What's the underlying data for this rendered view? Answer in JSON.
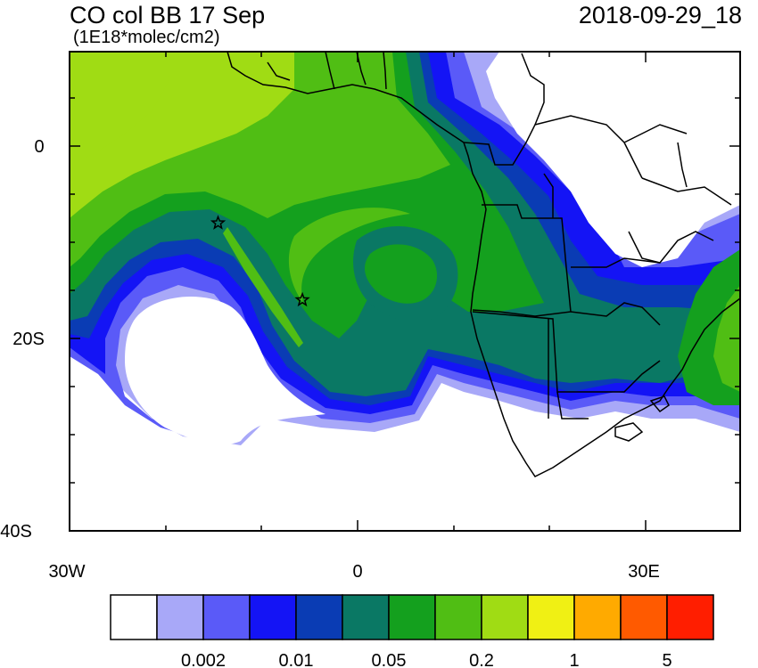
{
  "header": {
    "title": "CO col BB 17 Sep",
    "units": "(1E18*molec/cm2)",
    "datetime": "2018-09-29_18"
  },
  "axes": {
    "lat_labels": [
      "0",
      "20S",
      "40S"
    ],
    "lon_labels": [
      "30W",
      "0",
      "30E"
    ]
  },
  "colorbar": {
    "colors": [
      "#ffffff",
      "#a8a8f8",
      "#5a5af8",
      "#1414f5",
      "#0a3cb4",
      "#0a7864",
      "#14a01e",
      "#50be14",
      "#a0dc14",
      "#f0f014",
      "#ffaa00",
      "#ff5a00",
      "#ff1e00"
    ],
    "labels": [
      "0.002",
      "0.01",
      "0.05",
      "0.2",
      "1",
      "5"
    ]
  },
  "markers": [
    {
      "name": "star-marker-1",
      "lon": -14.5,
      "lat": -8.0
    },
    {
      "name": "star-marker-2",
      "lon": -5.7,
      "lat": -16.0
    }
  ]
}
